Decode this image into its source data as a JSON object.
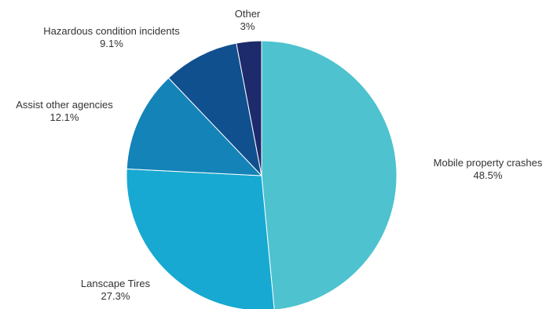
{
  "chart_data": {
    "type": "pie",
    "title": "",
    "start_angle_deg": 0,
    "direction": "clockwise",
    "slices": [
      {
        "label": "Mobile property crashes",
        "value": 48.5,
        "value_label": "48.5%",
        "color": "#4ec2cf"
      },
      {
        "label": "Lanscape Tires",
        "value": 27.3,
        "value_label": "27.3%",
        "color": "#17a9d1"
      },
      {
        "label": "Assist other agencies",
        "value": 12.1,
        "value_label": "12.1%",
        "color": "#1383b8"
      },
      {
        "label": "Hazardous condition incidents",
        "value": 9.1,
        "value_label": "9.1%",
        "color": "#10508f"
      },
      {
        "label": "Other",
        "value": 3.0,
        "value_label": "3%",
        "color": "#1d2a6b"
      }
    ]
  }
}
